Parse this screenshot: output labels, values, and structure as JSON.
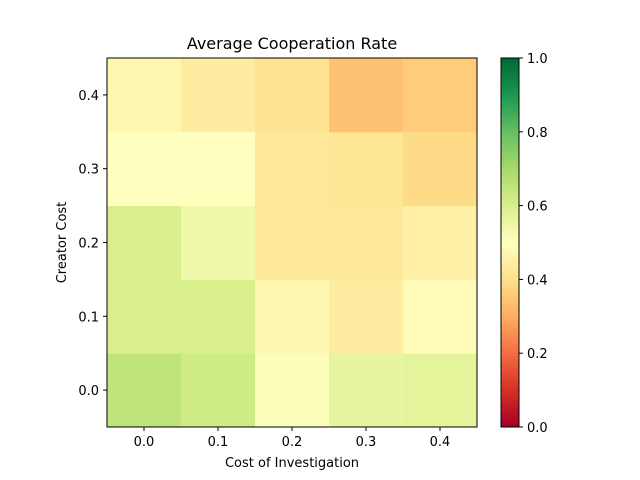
{
  "chart_data": {
    "type": "heatmap",
    "title": "Average Cooperation Rate",
    "xlabel": "Cost of Investigation",
    "ylabel": "Creator Cost",
    "x": [
      "0.0",
      "0.1",
      "0.2",
      "0.3",
      "0.4"
    ],
    "y": [
      "0.0",
      "0.1",
      "0.2",
      "0.3",
      "0.4"
    ],
    "values": [
      [
        0.65,
        0.62,
        0.51,
        0.56,
        0.57
      ],
      [
        0.6,
        0.6,
        0.47,
        0.44,
        0.49
      ],
      [
        0.6,
        0.54,
        0.43,
        0.43,
        0.45
      ],
      [
        0.5,
        0.5,
        0.43,
        0.42,
        0.39
      ],
      [
        0.47,
        0.44,
        0.41,
        0.34,
        0.36
      ]
    ],
    "colorbar": {
      "min": 0.0,
      "max": 1.0,
      "ticks": [
        "0.0",
        "0.2",
        "0.4",
        "0.6",
        "0.8",
        "1.0"
      ],
      "colormap": "RdYlGn"
    }
  }
}
